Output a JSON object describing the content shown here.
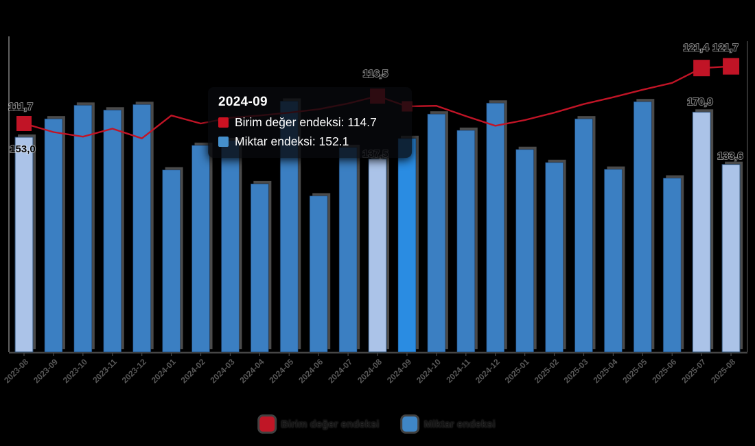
{
  "chart_data": {
    "type": "bar",
    "title": "",
    "xlabel": "",
    "ylabel": "",
    "categories": [
      "2023-08",
      "2023-09",
      "2023-10",
      "2023-11",
      "2023-12",
      "2024-01",
      "2024-02",
      "2024-03",
      "2024-04",
      "2024-05",
      "2024-06",
      "2024-07",
      "2024-08",
      "2024-09",
      "2024-10",
      "2024-11",
      "2024-12",
      "2025-01",
      "2025-02",
      "2025-03",
      "2025-04",
      "2025-05",
      "2025-06",
      "2025-07",
      "2025-08"
    ],
    "series": [
      {
        "name": "Birim değer endeksi",
        "type": "line",
        "color": "#c11426",
        "values": [
          111.7,
          110.2,
          109.4,
          110.8,
          109.1,
          113.1,
          111.7,
          112.7,
          113.1,
          113.6,
          114.2,
          115.2,
          116.5,
          114.7,
          114.8,
          113.0,
          111.3,
          112.3,
          113.6,
          115.1,
          116.3,
          117.6,
          118.8,
          121.4,
          121.7
        ]
      },
      {
        "name": "Miktar endeksi",
        "type": "column",
        "color": "#3b7fc2",
        "values": [
          153.0,
          166.1,
          175.8,
          172.4,
          176.3,
          129.7,
          147.2,
          150.6,
          119.8,
          178.7,
          111.2,
          145.7,
          137.5,
          152.1,
          169.5,
          157.9,
          177.3,
          144.3,
          135.0,
          166.1,
          130.2,
          178.3,
          123.9,
          170.9,
          133.6
        ]
      }
    ],
    "highlighted_months": [
      "2023-08",
      "2024-08",
      "2025-07",
      "2025-08"
    ],
    "highlight_bar_color": "#abc3e8",
    "hover_month": "2024-09",
    "hover_bar_color": "#2a8ce2",
    "marker_color": "#c11426",
    "data_labels": [
      {
        "month": "2023-08",
        "series": "line",
        "text": "111,7"
      },
      {
        "month": "2023-08",
        "series": "bar",
        "text": "153,0"
      },
      {
        "month": "2024-08",
        "series": "line",
        "text": "116,5"
      },
      {
        "month": "2024-08",
        "series": "bar",
        "text": "137,5"
      },
      {
        "month": "2025-07",
        "series": "line",
        "text": "121,4"
      },
      {
        "month": "2025-08",
        "series": "line",
        "text": "121,7"
      },
      {
        "month": "2025-07",
        "series": "bar",
        "text": "170,9"
      },
      {
        "month": "2025-08",
        "series": "bar",
        "text": "133,6"
      }
    ],
    "ylim": [
      0,
      225
    ],
    "grid": false,
    "legend_position": "bottom"
  },
  "tooltip": {
    "title": "2024-09",
    "rows": [
      {
        "label": "Birim değer endeksi",
        "value": "114.7",
        "text": "Birim değer endeksi: 114.7",
        "color": "#cc1222"
      },
      {
        "label": "Miktar endeksi",
        "value": "152.1",
        "text": "Miktar endeksi: 152.1",
        "color": "#4590cd"
      }
    ]
  },
  "legend": {
    "items": [
      {
        "label": "Birim değer endeksi",
        "color": "#c01626"
      },
      {
        "label": "Miktar endeksi",
        "color": "#3f86c6"
      }
    ]
  }
}
